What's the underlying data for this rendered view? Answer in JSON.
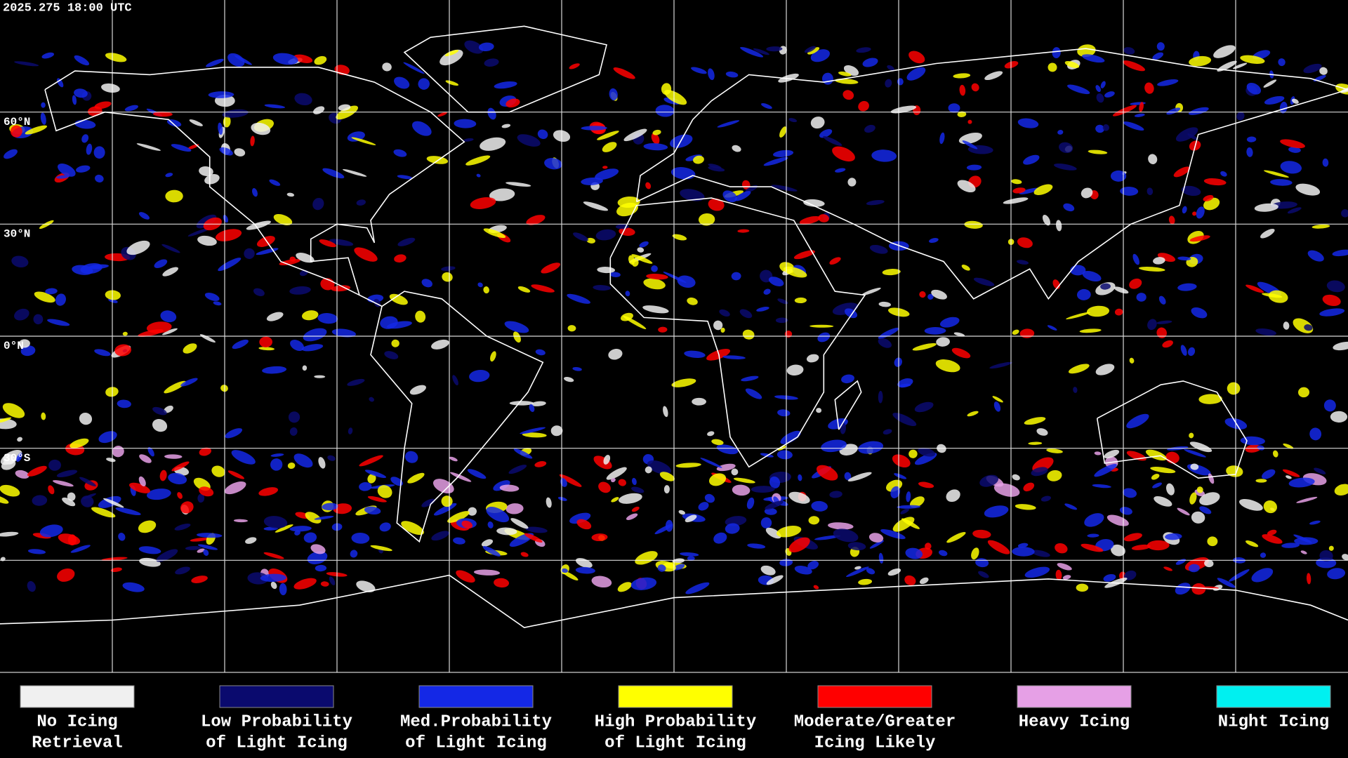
{
  "header": {
    "timestamp": "2025.275 18:00 UTC"
  },
  "map": {
    "lat_labels": [
      "60°N",
      "30°N",
      "0°N",
      "30°S"
    ]
  },
  "legend": {
    "items": [
      {
        "lines": [
          "No Icing",
          "Retrieval"
        ],
        "color": "#f0f0f0"
      },
      {
        "lines": [
          "Low Probability",
          "of Light Icing"
        ],
        "color": "#0a0a6e"
      },
      {
        "lines": [
          "Med.Probability",
          "of Light Icing"
        ],
        "color": "#1428e6"
      },
      {
        "lines": [
          "High Probability",
          "of Light Icing"
        ],
        "color": "#ffff00"
      },
      {
        "lines": [
          "Moderate/Greater",
          "Icing Likely"
        ],
        "color": "#ff0000"
      },
      {
        "lines": [
          "Heavy Icing"
        ],
        "color": "#e6a0e6"
      },
      {
        "lines": [
          "Night Icing"
        ],
        "color": "#00f0f0"
      }
    ]
  }
}
